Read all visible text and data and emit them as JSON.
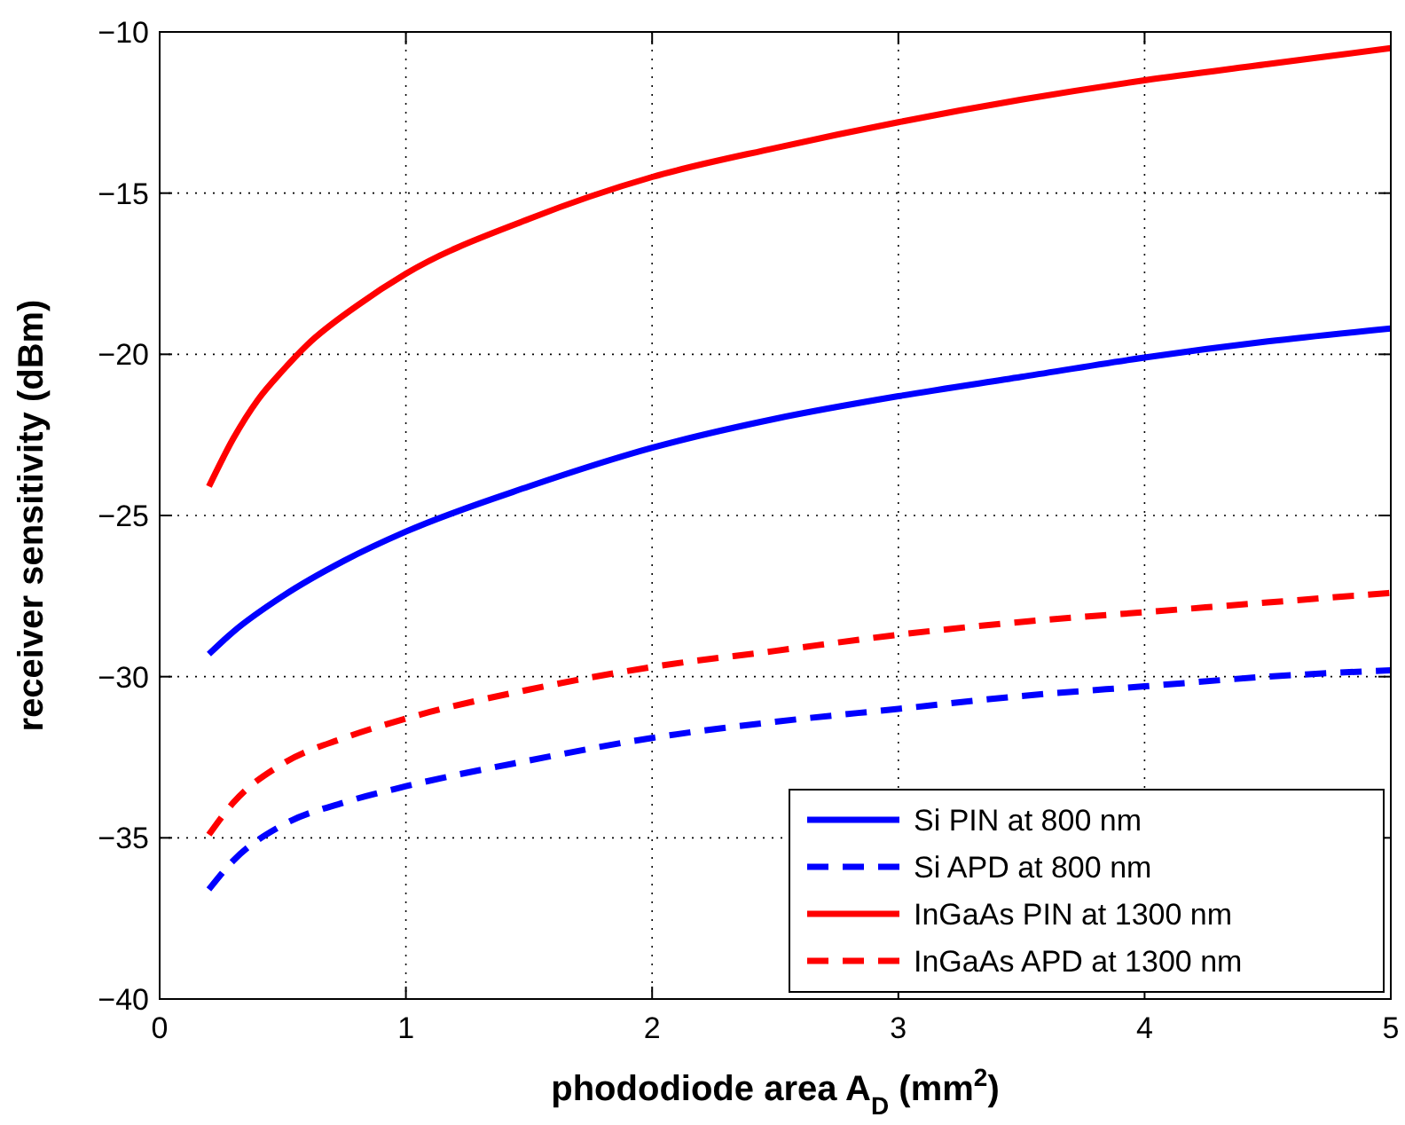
{
  "chart_data": {
    "type": "line",
    "xlabel": "phododiode area A$_{D}$ (mm$^{2}$)",
    "ylabel": "receiver sensitivity (dBm)",
    "xlim": [
      0,
      5
    ],
    "ylim": [
      -40,
      -10
    ],
    "xticks": [
      0,
      1,
      2,
      3,
      4,
      5
    ],
    "yticks": [
      -40,
      -35,
      -30,
      -25,
      -20,
      -15,
      -10
    ],
    "grid": true,
    "legend": "bottom right",
    "series": [
      {
        "name": "Si PIN at 800 nm",
        "color": "#0000ff",
        "line_style": "solid",
        "x": [
          0.2,
          0.3,
          0.5,
          0.75,
          1,
          1.5,
          2,
          2.5,
          3,
          3.5,
          4,
          4.5,
          5
        ],
        "values": [
          -29.3,
          -28.6,
          -27.5,
          -26.4,
          -25.5,
          -24.1,
          -22.9,
          -22.0,
          -21.3,
          -20.7,
          -20.1,
          -19.6,
          -19.2
        ]
      },
      {
        "name": "Si APD at 800 nm",
        "color": "#0000ff",
        "line_style": "dashed",
        "x": [
          0.2,
          0.3,
          0.5,
          0.75,
          1,
          1.5,
          2,
          2.5,
          3,
          3.5,
          4,
          4.5,
          5
        ],
        "values": [
          -36.6,
          -35.7,
          -34.6,
          -33.9,
          -33.4,
          -32.6,
          -31.9,
          -31.4,
          -31.0,
          -30.6,
          -30.3,
          -30.0,
          -29.8
        ]
      },
      {
        "name": "InGaAs PIN at 1300 nm",
        "color": "#ff0000",
        "line_style": "solid",
        "x": [
          0.2,
          0.3,
          0.4,
          0.5,
          0.6,
          0.8,
          1,
          1.5,
          2,
          2.5,
          3,
          3.5,
          4,
          4.5,
          5
        ],
        "values": [
          -24.1,
          -22.6,
          -21.4,
          -20.5,
          -19.7,
          -18.5,
          -17.5,
          -15.8,
          -14.5,
          -13.6,
          -12.8,
          -12.1,
          -11.5,
          -11.0,
          -10.5
        ]
      },
      {
        "name": "InGaAs APD at 1300 nm",
        "color": "#ff0000",
        "line_style": "dashed",
        "x": [
          0.2,
          0.3,
          0.5,
          0.75,
          1,
          1.5,
          2,
          2.5,
          3,
          3.5,
          4,
          4.5,
          5
        ],
        "values": [
          -34.9,
          -33.9,
          -32.7,
          -31.9,
          -31.3,
          -30.4,
          -29.7,
          -29.2,
          -28.7,
          -28.3,
          -28.0,
          -27.7,
          -27.4
        ]
      }
    ]
  }
}
